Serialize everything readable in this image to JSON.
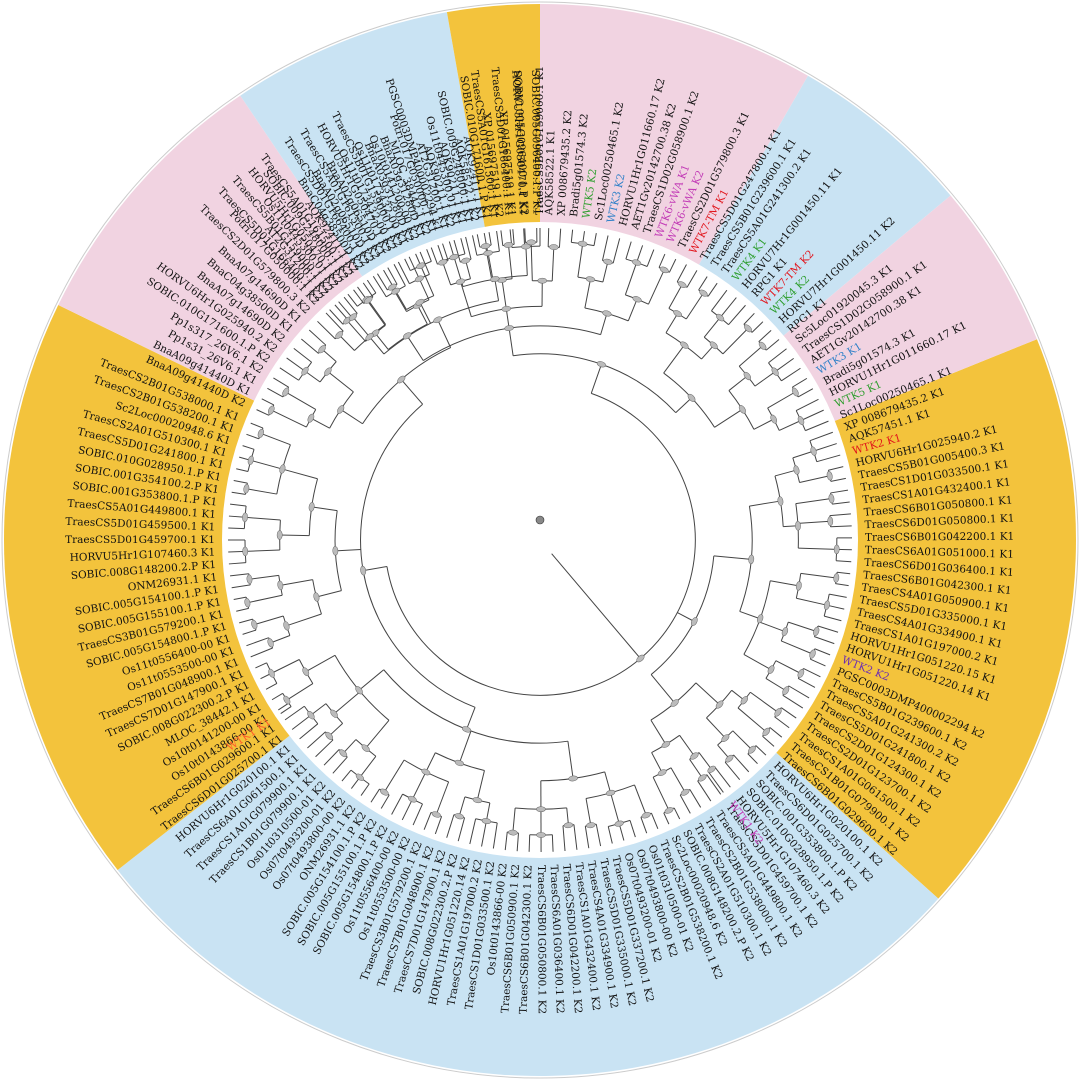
{
  "colors": {
    "orange": "#f3c33c",
    "blue": "#c9e3f3",
    "pink": "#f1d3e1",
    "text": "#111111",
    "branch": "#444444",
    "wtk_red": "#e1141b",
    "wtk_green": "#2e9e2e",
    "wtk_blue": "#2f80c8",
    "wtk_purple": "#6a2bb5",
    "wtk_magenta": "#c23ab6",
    "wtk_orange": "#ff5a2a"
  },
  "sectors": [
    {
      "name": "orange-right",
      "color": "orange",
      "from": -22,
      "to": 42
    },
    {
      "name": "blue-bottom",
      "color": "blue",
      "from": 42,
      "to": 142
    },
    {
      "name": "orange-left",
      "color": "orange",
      "from": 142,
      "to": 206
    },
    {
      "name": "pink-upper-left",
      "color": "pink",
      "from": 206,
      "to": 236
    },
    {
      "name": "blue-top-left",
      "color": "blue",
      "from": 236,
      "to": 260
    },
    {
      "name": "orange-top",
      "color": "orange",
      "from": 260,
      "to": 270
    },
    {
      "name": "pink-top",
      "color": "pink",
      "from": 270,
      "to": 300
    },
    {
      "name": "blue-top-right",
      "color": "blue",
      "from": 300,
      "to": 320
    },
    {
      "name": "pink-right",
      "color": "pink",
      "from": 320,
      "to": 338
    }
  ],
  "labels": [
    {
      "text": "TraesCS5B01G159000.1 K1",
      "a": 270.0
    },
    {
      "text": "HORVU5Hr1G050470.1 K1",
      "a": 267.0
    },
    {
      "text": "TraesCS5D01G166400.1 K1",
      "a": 264.5
    },
    {
      "text": "TraesCS5A01G161500.1 K1",
      "a": 262.0
    },
    {
      "text": "AQK92411.1 K1",
      "a": 259.7
    },
    {
      "text": "SOBIC.009G248000.1 K1",
      "a": 257.5
    },
    {
      "text": "Os11t0445300.01 K1",
      "a": 255.3
    },
    {
      "text": "AT2G31200.1 K1",
      "a": 253.1
    },
    {
      "text": "Potri.017G050000.1 K1",
      "a": 250.9
    },
    {
      "text": "BnaA03g31280D K1",
      "a": 248.7
    },
    {
      "text": "BnaA03g31280D K2",
      "a": 246.5
    },
    {
      "text": "TraesCS5B01G159000.1 K2",
      "a": 244.3
    },
    {
      "text": "HORVU5Hr1G050470.1 K2",
      "a": 242.1
    },
    {
      "text": "TraesCS5A01G161500.1 K2",
      "a": 239.9
    },
    {
      "text": "TraesCS5D01G166400.1 K2",
      "a": 237.7
    },
    {
      "text": "AQK92411.1 K2",
      "a": 235.5
    },
    {
      "text": "SOBIC.009G248000.1 K2",
      "a": 233.3
    },
    {
      "text": "Os11t0445300.01 K2",
      "a": 231.1
    },
    {
      "text": "AT2G31200.1 K2",
      "a": 228.9
    },
    {
      "text": "Potri.017G050000.1 K2",
      "a": 226.7
    },
    {
      "text": "TraesCS2D01G579800.3 K2",
      "a": 224.5
    },
    {
      "text": "BnaA07g14690D K1",
      "a": 222.3
    },
    {
      "text": "BnaC04g38500D K1",
      "a": 220.1
    },
    {
      "text": "BnaA07g14690D K2",
      "a": 217.9
    },
    {
      "text": "HORVU6Hr1G025940.2 K2",
      "a": 215.7
    },
    {
      "text": "SOBIC.010G171600.1.P K2",
      "a": 213.5
    },
    {
      "text": "Pp1s317_26V6.1 K2",
      "a": 211.3
    },
    {
      "text": "Pp1s31_26V6.1 K1",
      "a": 209.1
    },
    {
      "text": "BnaA09g41440D K1",
      "a": 206.9
    },
    {
      "text": "BnaA09g41440D K2",
      "a": 204.7
    },
    {
      "text": "TraesCS2B01G538000.1 K1",
      "a": 202.0
    },
    {
      "text": "TraesCS2B01G538200.1 K1",
      "a": 199.8
    },
    {
      "text": "Sc2Loc00020948.6 K1",
      "a": 197.6
    },
    {
      "text": "TraesCS2A01G510300.1 K1",
      "a": 195.4
    },
    {
      "text": "TraesCS5D01G241800.1 K1",
      "a": 193.2
    },
    {
      "text": "SOBIC.010G028950.1.P K1",
      "a": 191.0
    },
    {
      "text": "SOBIC.001G354100.2.P K1",
      "a": 188.8
    },
    {
      "text": "SOBIC.001G353800.1.P K1",
      "a": 186.6
    },
    {
      "text": "TraesCS5A01G449800.1 K1",
      "a": 184.4
    },
    {
      "text": "TraesCS5D01G459500.1 K1",
      "a": 182.2
    },
    {
      "text": "TraesCS5D01G459700.1 K1",
      "a": 180.0
    },
    {
      "text": "HORVU5Hr1G107460.3 K1",
      "a": 177.8
    },
    {
      "text": "SOBIC.008G148200.2.P K1",
      "a": 175.6
    },
    {
      "text": "ONM26931.1 K1",
      "a": 173.4
    },
    {
      "text": "SOBIC.005G154100.1.P K1",
      "a": 171.2
    },
    {
      "text": "SOBIC.005G155100.1.P K1",
      "a": 169.0
    },
    {
      "text": "TraesCS3B01G579200.1 K1",
      "a": 166.8
    },
    {
      "text": "SOBIC.005G154800.1.P K1",
      "a": 164.6
    },
    {
      "text": "Os11t0556400-00 K1",
      "a": 162.4
    },
    {
      "text": "Os11t0553500-00 K1",
      "a": 160.2
    },
    {
      "text": "TraesCS7B01G048900.1 K1",
      "a": 158.0
    },
    {
      "text": "TraesCS7D01G147900.1 K1",
      "a": 155.8
    },
    {
      "text": "SOBIC.008G022300.2.P K1",
      "a": 153.6
    },
    {
      "text": "MLOC_38442.1 K1",
      "a": 151.4
    },
    {
      "text": "Os10t0141200-00 K1",
      "a": 149.2
    },
    {
      "text": "Os10t0143866-00 K1",
      "a": 147.0
    },
    {
      "text": "TraesCS6B01G029600.1 K1",
      "a": 144.8
    },
    {
      "text": "TraesCS6D01G025700.1 K1",
      "a": 142.6
    },
    {
      "text": "HORVU6Hr1G020100.1 K1",
      "a": 140.4
    },
    {
      "text": "TraesCS6A01G061500.1 K1",
      "a": 138.2
    },
    {
      "text": "TraesCS1A01G079900.1 K1",
      "a": 136.0
    },
    {
      "text": "TraesCS1B01G079900.1 K1",
      "a": 133.8
    },
    {
      "text": "WTK1 K1",
      "a": 146.2,
      "color": "wtk_orange"
    },
    {
      "text": "Os01t0310500-01 K2",
      "a": 131.6
    },
    {
      "text": "Os07t0493200-01 K2",
      "a": 129.4
    },
    {
      "text": "Os07t0493800-00 K2",
      "a": 127.2
    },
    {
      "text": "ONM26931.1 K2",
      "a": 125.0
    },
    {
      "text": "SOBIC.005G154100.1.P K2",
      "a": 122.8
    },
    {
      "text": "SOBIC.005G155100.1.P K2",
      "a": 120.6
    },
    {
      "text": "SOBIC.005G154800.1.P K2",
      "a": 118.4
    },
    {
      "text": "Os11t0556400-00 K2",
      "a": 116.2
    },
    {
      "text": "Os11t0553500-00 K2",
      "a": 114.0
    },
    {
      "text": "TraesCS3B01G579200.1 K2",
      "a": 111.8
    },
    {
      "text": "TraesCS7B01G048900.1 K2",
      "a": 109.6
    },
    {
      "text": "TraesCS7D01G147900.1 K2",
      "a": 107.4
    },
    {
      "text": "SOBIC.008G022300.2.P K2",
      "a": 105.2
    },
    {
      "text": "HORVU1Hr1G051220.14 K2",
      "a": 103.0
    },
    {
      "text": "TraesCS1A01G197000.2 K2",
      "a": 100.8
    },
    {
      "text": "TraesCS1D01G033500.1 K2",
      "a": 98.6
    },
    {
      "text": "Os10t0143866-00 K2",
      "a": 96.4
    },
    {
      "text": "TraesCS6B01G050900.1 K2",
      "a": 94.2
    },
    {
      "text": "TraesCS6B01G042300.1 K2",
      "a": 92.0
    },
    {
      "text": "TraesCS6B01G050800.1 K2",
      "a": 89.8
    },
    {
      "text": "TraesCS6A01G036400.1 K2",
      "a": 87.6
    },
    {
      "text": "TraesCS6D01G042200.1 K2",
      "a": 85.4
    },
    {
      "text": "TraesCS1A01G432400.1 K2",
      "a": 83.2
    },
    {
      "text": "TraesCS4A01G334900.1 K2",
      "a": 81.0
    },
    {
      "text": "TraesCS5D01G335000.1 K2",
      "a": 78.8
    },
    {
      "text": "TraesCS5D01G337200.1 K2",
      "a": 76.6
    },
    {
      "text": "Os07t0493200-01 K2",
      "a": 74.4
    },
    {
      "text": "Os07t0493800-00 K2",
      "a": 72.2
    },
    {
      "text": "Os01t0310500-01 K2",
      "a": 70.0
    },
    {
      "text": "TraesCS2B01G538200.1 K2",
      "a": 67.8
    },
    {
      "text": "Sc2Loc00020948.6 K2",
      "a": 65.6
    },
    {
      "text": "SOBIC.008G148200.2.P K2",
      "a": 63.4
    },
    {
      "text": "TraesCS2A01G510300.1 K2",
      "a": 61.2
    },
    {
      "text": "TraesCS2B01G538000.1 K2",
      "a": 59.0
    },
    {
      "text": "TraesCS5A01G449800.1 K2",
      "a": 56.8
    },
    {
      "text": "TraesCS5D01G459700.1 K2",
      "a": 54.6
    },
    {
      "text": "HORVU5Hr1G107460.3 K2",
      "a": 52.4
    },
    {
      "text": "SOBIC.010G028950.1.P K2",
      "a": 50.2
    },
    {
      "text": "SOBIC.001G353800.1.P K2",
      "a": 48.0
    },
    {
      "text": "TraesCS6D01G025700.1 K2",
      "a": 45.8
    },
    {
      "text": "HORVU6Hr1G020100.1 K2",
      "a": 43.6
    },
    {
      "text": "TraesCS6B01G029600.1 K2",
      "a": 41.4
    },
    {
      "text": "WTK1 K2",
      "a": 54.0,
      "color": "wtk_magenta"
    },
    {
      "text": "TraesCS1B01G079900.1 K2",
      "a": 39.2
    },
    {
      "text": "TraesCS1A01G061500.1 K2",
      "a": 37.0
    },
    {
      "text": "TraesCS2D01G123700.1 K2",
      "a": 34.8
    },
    {
      "text": "TraesCS2D01G124300.1 K2",
      "a": 32.6
    },
    {
      "text": "TraesCS5D01G241800.1 K2",
      "a": 30.4
    },
    {
      "text": "TraesCS5A01G241300.2 K2",
      "a": 28.2
    },
    {
      "text": "TraesCS5B01G239600.1 K2",
      "a": 26.0
    },
    {
      "text": "PGSC0003DMP400002294 k2",
      "a": 23.8
    },
    {
      "text": "WTK2 K2",
      "a": 21.6,
      "color": "wtk_purple"
    },
    {
      "text": "HORVU1Hr1G051220.14 K1",
      "a": 19.4
    },
    {
      "text": "HORVU1Hr1G051220.15 K1",
      "a": 17.2
    },
    {
      "text": "TraesCS1A01G197000.2 K1",
      "a": 15.0
    },
    {
      "text": "TraesCS4A01G334900.1 K1",
      "a": 12.8
    },
    {
      "text": "TraesCS5D01G335000.1 K1",
      "a": 10.6
    },
    {
      "text": "TraesCS4A01G050900.1 K1",
      "a": 8.4
    },
    {
      "text": "TraesCS6B01G042300.1 K1",
      "a": 6.2
    },
    {
      "text": "TraesCS6D01G036400.1 K1",
      "a": 4.0
    },
    {
      "text": "TraesCS6A01G051000.1 K1",
      "a": 1.8
    },
    {
      "text": "TraesCS6B01G042200.1 K1",
      "a": -0.4
    },
    {
      "text": "TraesCS6D01G050800.1 K1",
      "a": -2.6
    },
    {
      "text": "TraesCS6B01G050800.1 K1",
      "a": -4.8
    },
    {
      "text": "TraesCS1A01G432400.1 K1",
      "a": -7.0
    },
    {
      "text": "TraesCS1D01G033500.1 K1",
      "a": -9.2
    },
    {
      "text": "TraesCS5B01G005400.3 K1",
      "a": -11.4
    },
    {
      "text": "HORVU6Hr1G025940.2 K1",
      "a": -13.6
    },
    {
      "text": "WTK2 K1",
      "a": -15.8,
      "color": "wtk_red"
    },
    {
      "text": "AQK57451.1 K1",
      "a": -18.0
    },
    {
      "text": "XP 008679435.2 K1",
      "a": -20.2
    },
    {
      "text": "Sc1Loc00250465.1 K1",
      "a": -22.4
    },
    {
      "text": "WTK5 K1",
      "a": -24.6,
      "color": "wtk_green"
    },
    {
      "text": "HORVU1Hr1G011660.17 K1",
      "a": -26.8
    },
    {
      "text": "Bradi5g01574.3 K1",
      "a": -29.0
    },
    {
      "text": "WTK3 K1",
      "a": -31.2,
      "color": "wtk_blue"
    },
    {
      "text": "AET1Gv20142700.38 K1",
      "a": -33.4
    },
    {
      "text": "TraesCS1D02G058900.1 K1",
      "a": -35.6
    },
    {
      "text": "Sc5Loc01920045.3 K1",
      "a": -37.8
    },
    {
      "text": "RPG1 K1",
      "a": -40.0
    },
    {
      "text": "HORVU7Hr1G001450.11 K2",
      "a": -42.2
    },
    {
      "text": "WTK4 K2",
      "a": -44.4,
      "color": "wtk_green"
    },
    {
      "text": "WTK7-TM K2",
      "a": -46.6,
      "color": "wtk_red"
    },
    {
      "text": "RPG1 K1",
      "a": -48.8
    },
    {
      "text": "HORVU7Hr1G001450.11 K1",
      "a": -51.0
    },
    {
      "text": "WTK4 K1",
      "a": -53.2,
      "color": "wtk_green"
    },
    {
      "text": "TraesCS5A01G241300.2 K1",
      "a": -55.4
    },
    {
      "text": "TraesCS5B01G239600.1 K1",
      "a": -57.6
    },
    {
      "text": "TraesCS5D01G247800.1 K1",
      "a": -59.8
    },
    {
      "text": "WTK7-TM K1",
      "a": -62.0,
      "color": "wtk_red"
    },
    {
      "text": "TraesCS2D01G579800.3 K1",
      "a": -64.2
    },
    {
      "text": "WTK6-vWA K2",
      "a": -66.4,
      "color": "wtk_magenta"
    },
    {
      "text": "WTK6-vWA K1",
      "a": -68.6,
      "color": "wtk_magenta"
    },
    {
      "text": "TraesCS1D02G058900.1 K2",
      "a": -70.8
    },
    {
      "text": "AET1Gv20142700.38 K2",
      "a": -73.0
    },
    {
      "text": "HORVU1Hr1G011660.17 K2",
      "a": -75.2
    },
    {
      "text": "WTK3 K2",
      "a": -77.4,
      "color": "wtk_blue"
    },
    {
      "text": "Sc1Loc00250465.1 K2",
      "a": -79.6
    },
    {
      "text": "WTK5 K2",
      "a": -81.8,
      "color": "wtk_green"
    },
    {
      "text": "Bradi5g01574.3 K2",
      "a": -84.0
    },
    {
      "text": "XP 008679435.2 K2",
      "a": -86.2
    },
    {
      "text": "AQK58522.1 K1",
      "a": -88.4
    },
    {
      "text": "SOBIC.005G096400.1.P K1",
      "a": -90.6
    },
    {
      "text": "SOBIC.005G096400.1.P K2",
      "a": -92.8
    },
    {
      "text": "XP 015697519.1 K1",
      "a": -95.0
    },
    {
      "text": "XP 015697519.1 K2",
      "a": -97.2
    },
    {
      "text": "SOBIC.010G171600.1.P K1",
      "a": -99.4
    },
    {
      "text": "AQK58522.1 K2",
      "a": -101.6
    },
    {
      "text": "AQK90211.1 K1",
      "a": -103.8
    },
    {
      "text": "AQK90211.1 K2",
      "a": -106.0
    },
    {
      "text": "PGSC0003DMP400002294 k1",
      "a": -108.2
    },
    {
      "text": "MLOC_38442.1 K2",
      "a": -110.4
    },
    {
      "text": "Os10t0141200-00 K2",
      "a": -112.6
    },
    {
      "text": "Os11t0173432-00 K1",
      "a": -114.8
    },
    {
      "text": "Os11t0173432-00 K2",
      "a": -117.0
    },
    {
      "text": "BnaA02g06510D K1",
      "a": -119.2
    },
    {
      "text": "BnaA02g06510D K2",
      "a": -121.4
    },
    {
      "text": "BnaC04g38500D K2",
      "a": -123.6
    },
    {
      "text": "TraesCS5A01G161500.1 K2",
      "a": -125.8
    },
    {
      "text": "HORVU5Hr1G050470.1 K2",
      "a": -128.0
    },
    {
      "text": "TraesCS5B01G159000.1 K2",
      "a": -130.2
    },
    {
      "text": "TraesCS5D01G166400.1 K2",
      "a": -132.4
    }
  ]
}
